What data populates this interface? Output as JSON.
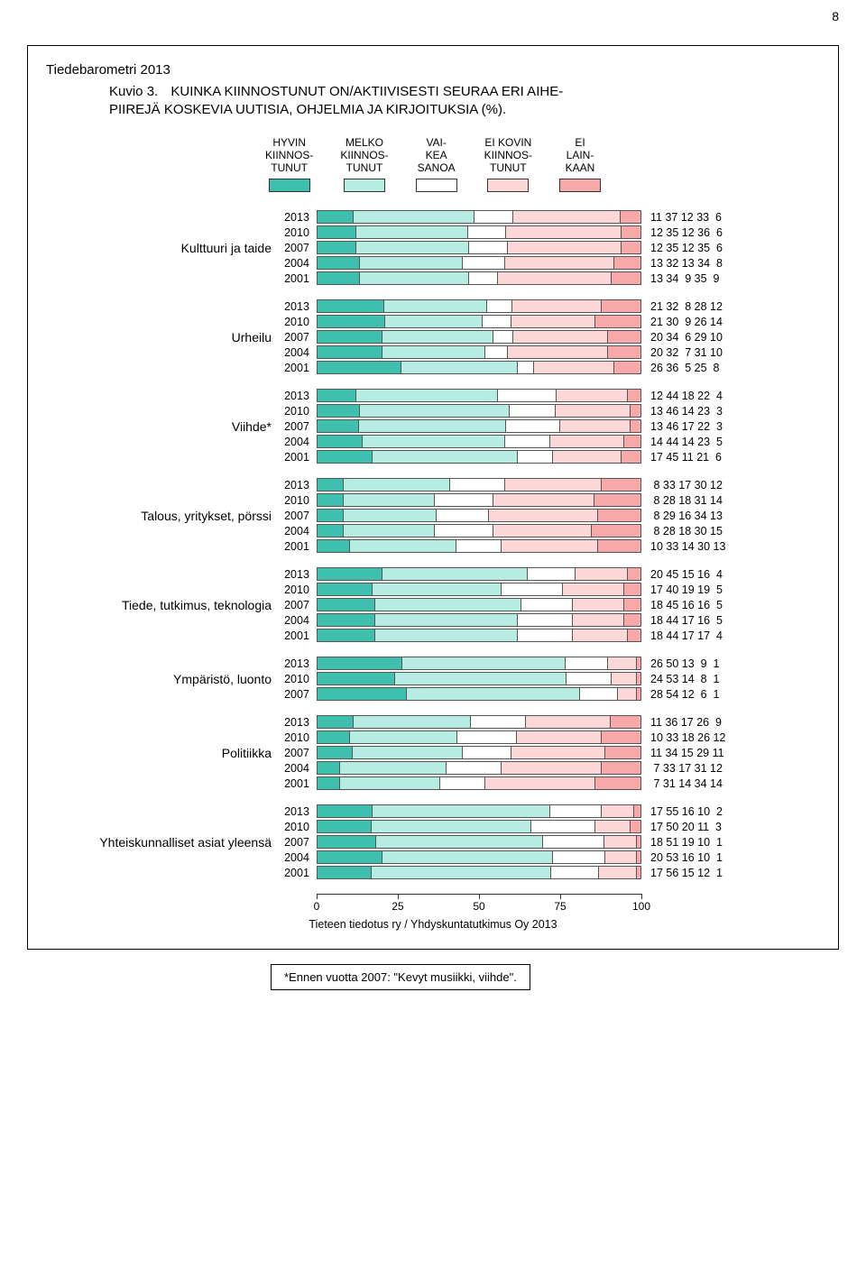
{
  "page_number": "8",
  "header": {
    "series_title": "Tiedebarometri 2013",
    "kuvio_label": "Kuvio 3.",
    "title_line1": "KUINKA KIINNOSTUNUT ON/AKTIIVISESTI SEURAA ERI AIHE-",
    "title_line2": "PIIREJÄ KOSKEVIA UUTISIA, OHJELMIA JA KIRJOITUKSIA (%)."
  },
  "legend": [
    {
      "lines": [
        "HYVIN",
        "KIINNOS-",
        "TUNUT"
      ],
      "color": "#3fbfae"
    },
    {
      "lines": [
        "MELKO",
        "KIINNOS-",
        "TUNUT"
      ],
      "color": "#b7ece3"
    },
    {
      "lines": [
        "VAI-",
        "KEA",
        "SANOA"
      ],
      "color": "#ffffff"
    },
    {
      "lines": [
        "EI KOVIN",
        "KIINNOS-",
        "TUNUT"
      ],
      "color": "#fcd7d7"
    },
    {
      "lines": [
        "EI",
        "LAIN-",
        "KAAN"
      ],
      "color": "#f7a8a8"
    }
  ],
  "colors": [
    "#3fbfae",
    "#b7ece3",
    "#ffffff",
    "#fcd7d7",
    "#f7a8a8"
  ],
  "axis": {
    "ticks": [
      0,
      25,
      50,
      75,
      100
    ]
  },
  "groups": [
    {
      "label": "Kulttuuri ja taide",
      "rows": [
        {
          "year": "2013",
          "vals": [
            11,
            37,
            12,
            33,
            6
          ]
        },
        {
          "year": "2010",
          "vals": [
            12,
            35,
            12,
            36,
            6
          ]
        },
        {
          "year": "2007",
          "vals": [
            12,
            35,
            12,
            35,
            6
          ]
        },
        {
          "year": "2004",
          "vals": [
            13,
            32,
            13,
            34,
            8
          ]
        },
        {
          "year": "2001",
          "vals": [
            13,
            34,
            9,
            35,
            9
          ]
        }
      ]
    },
    {
      "label": "Urheilu",
      "rows": [
        {
          "year": "2013",
          "vals": [
            21,
            32,
            8,
            28,
            12
          ]
        },
        {
          "year": "2010",
          "vals": [
            21,
            30,
            9,
            26,
            14
          ]
        },
        {
          "year": "2007",
          "vals": [
            20,
            34,
            6,
            29,
            10
          ]
        },
        {
          "year": "2004",
          "vals": [
            20,
            32,
            7,
            31,
            10
          ]
        },
        {
          "year": "2001",
          "vals": [
            26,
            36,
            5,
            25,
            8
          ]
        }
      ]
    },
    {
      "label": "Viihde*",
      "rows": [
        {
          "year": "2013",
          "vals": [
            12,
            44,
            18,
            22,
            4
          ]
        },
        {
          "year": "2010",
          "vals": [
            13,
            46,
            14,
            23,
            3
          ]
        },
        {
          "year": "2007",
          "vals": [
            13,
            46,
            17,
            22,
            3
          ]
        },
        {
          "year": "2004",
          "vals": [
            14,
            44,
            14,
            23,
            5
          ]
        },
        {
          "year": "2001",
          "vals": [
            17,
            45,
            11,
            21,
            6
          ]
        }
      ]
    },
    {
      "label": "Talous, yritykset, pörssi",
      "rows": [
        {
          "year": "2013",
          "vals": [
            8,
            33,
            17,
            30,
            12
          ]
        },
        {
          "year": "2010",
          "vals": [
            8,
            28,
            18,
            31,
            14
          ]
        },
        {
          "year": "2007",
          "vals": [
            8,
            29,
            16,
            34,
            13
          ]
        },
        {
          "year": "2004",
          "vals": [
            8,
            28,
            18,
            30,
            15
          ]
        },
        {
          "year": "2001",
          "vals": [
            10,
            33,
            14,
            30,
            13
          ]
        }
      ]
    },
    {
      "label": "Tiede, tutkimus, teknologia",
      "rows": [
        {
          "year": "2013",
          "vals": [
            20,
            45,
            15,
            16,
            4
          ]
        },
        {
          "year": "2010",
          "vals": [
            17,
            40,
            19,
            19,
            5
          ]
        },
        {
          "year": "2007",
          "vals": [
            18,
            45,
            16,
            16,
            5
          ]
        },
        {
          "year": "2004",
          "vals": [
            18,
            44,
            17,
            16,
            5
          ]
        },
        {
          "year": "2001",
          "vals": [
            18,
            44,
            17,
            17,
            4
          ]
        }
      ]
    },
    {
      "label": "Ympäristö, luonto",
      "rows": [
        {
          "year": "2013",
          "vals": [
            26,
            50,
            13,
            9,
            1
          ]
        },
        {
          "year": "2010",
          "vals": [
            24,
            53,
            14,
            8,
            1
          ]
        },
        {
          "year": "2007",
          "vals": [
            28,
            54,
            12,
            6,
            1
          ]
        }
      ]
    },
    {
      "label": "Politiikka",
      "rows": [
        {
          "year": "2013",
          "vals": [
            11,
            36,
            17,
            26,
            9
          ]
        },
        {
          "year": "2010",
          "vals": [
            10,
            33,
            18,
            26,
            12
          ]
        },
        {
          "year": "2007",
          "vals": [
            11,
            34,
            15,
            29,
            11
          ]
        },
        {
          "year": "2004",
          "vals": [
            7,
            33,
            17,
            31,
            12
          ]
        },
        {
          "year": "2001",
          "vals": [
            7,
            31,
            14,
            34,
            14
          ]
        }
      ]
    },
    {
      "label": "Yhteiskunnalliset asiat yleensä",
      "rows": [
        {
          "year": "2013",
          "vals": [
            17,
            55,
            16,
            10,
            2
          ]
        },
        {
          "year": "2010",
          "vals": [
            17,
            50,
            20,
            11,
            3
          ]
        },
        {
          "year": "2007",
          "vals": [
            18,
            51,
            19,
            10,
            1
          ]
        },
        {
          "year": "2004",
          "vals": [
            20,
            53,
            16,
            10,
            1
          ]
        },
        {
          "year": "2001",
          "vals": [
            17,
            56,
            15,
            12,
            1
          ]
        }
      ]
    }
  ],
  "source": "Tieteen tiedotus ry / Yhdyskuntatutkimus Oy 2013",
  "footnote": "*Ennen vuotta 2007: \"Kevyt musiikki, viihde\"."
}
